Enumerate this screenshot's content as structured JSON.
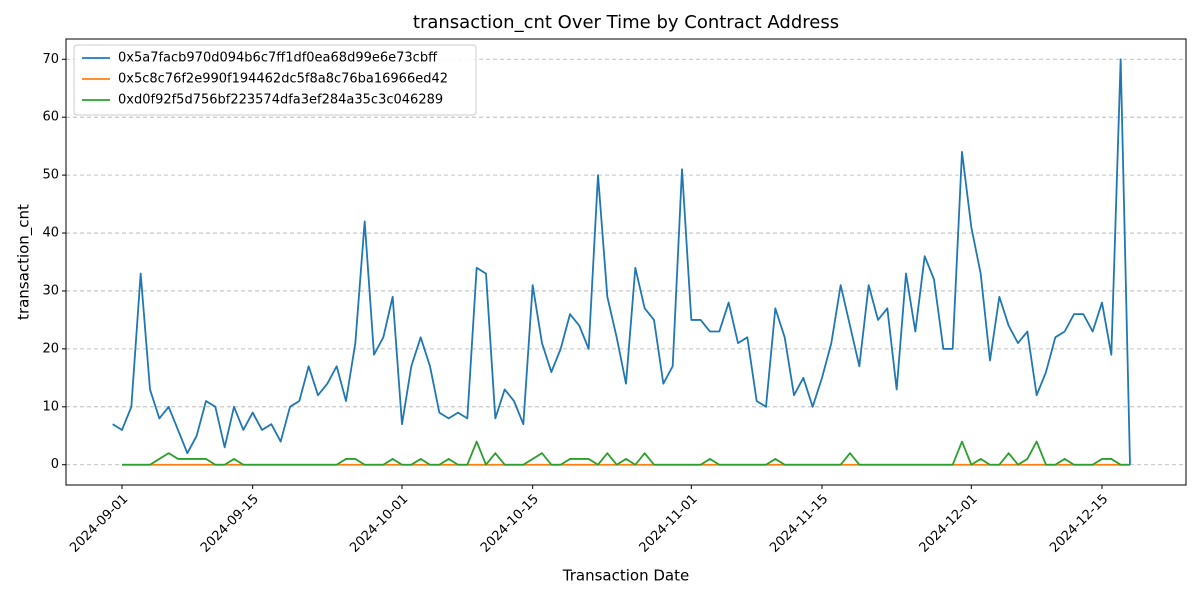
{
  "chart_data": {
    "type": "line",
    "title": "transaction_cnt Over Time by Contract Address",
    "x_label": "Transaction Date",
    "y_label": "transaction_cnt",
    "x": [
      "2024-08-31",
      "2024-09-01",
      "2024-09-02",
      "2024-09-03",
      "2024-09-04",
      "2024-09-05",
      "2024-09-06",
      "2024-09-07",
      "2024-09-08",
      "2024-09-09",
      "2024-09-10",
      "2024-09-11",
      "2024-09-12",
      "2024-09-13",
      "2024-09-14",
      "2024-09-15",
      "2024-09-16",
      "2024-09-17",
      "2024-09-18",
      "2024-09-19",
      "2024-09-20",
      "2024-09-21",
      "2024-09-22",
      "2024-09-23",
      "2024-09-24",
      "2024-09-25",
      "2024-09-26",
      "2024-09-27",
      "2024-09-28",
      "2024-09-29",
      "2024-09-30",
      "2024-10-01",
      "2024-10-02",
      "2024-10-03",
      "2024-10-04",
      "2024-10-05",
      "2024-10-06",
      "2024-10-07",
      "2024-10-08",
      "2024-10-09",
      "2024-10-10",
      "2024-10-11",
      "2024-10-12",
      "2024-10-13",
      "2024-10-14",
      "2024-10-15",
      "2024-10-16",
      "2024-10-17",
      "2024-10-18",
      "2024-10-19",
      "2024-10-20",
      "2024-10-21",
      "2024-10-22",
      "2024-10-23",
      "2024-10-24",
      "2024-10-25",
      "2024-10-26",
      "2024-10-27",
      "2024-10-28",
      "2024-10-29",
      "2024-10-30",
      "2024-10-31",
      "2024-11-01",
      "2024-11-02",
      "2024-11-03",
      "2024-11-04",
      "2024-11-05",
      "2024-11-06",
      "2024-11-07",
      "2024-11-08",
      "2024-11-09",
      "2024-11-10",
      "2024-11-11",
      "2024-11-12",
      "2024-11-13",
      "2024-11-14",
      "2024-11-15",
      "2024-11-16",
      "2024-11-17",
      "2024-11-18",
      "2024-11-19",
      "2024-11-20",
      "2024-11-21",
      "2024-11-22",
      "2024-11-23",
      "2024-11-24",
      "2024-11-25",
      "2024-11-26",
      "2024-11-27",
      "2024-11-28",
      "2024-11-29",
      "2024-11-30",
      "2024-12-01",
      "2024-12-02",
      "2024-12-03",
      "2024-12-04",
      "2024-12-05",
      "2024-12-06",
      "2024-12-07",
      "2024-12-08",
      "2024-12-09",
      "2024-12-10",
      "2024-12-11",
      "2024-12-12",
      "2024-12-13",
      "2024-12-14",
      "2024-12-15",
      "2024-12-16",
      "2024-12-17",
      "2024-12-18"
    ],
    "series": [
      {
        "name": "0x5a7facb970d094b6c7ff1df0ea68d99e6e73cbff",
        "color": "#1f77b4",
        "values": [
          7,
          6,
          10,
          33,
          13,
          8,
          10,
          6,
          2,
          5,
          11,
          10,
          3,
          10,
          6,
          9,
          6,
          7,
          4,
          10,
          11,
          17,
          12,
          14,
          17,
          11,
          21,
          42,
          19,
          22,
          29,
          7,
          17,
          22,
          17,
          9,
          8,
          9,
          8,
          34,
          33,
          8,
          13,
          11,
          7,
          31,
          21,
          16,
          20,
          26,
          24,
          20,
          50,
          29,
          22,
          14,
          34,
          27,
          25,
          14,
          17,
          51,
          25,
          25,
          23,
          23,
          28,
          21,
          22,
          11,
          10,
          27,
          22,
          12,
          15,
          10,
          15,
          21,
          31,
          24,
          17,
          31,
          25,
          27,
          13,
          33,
          23,
          36,
          32,
          20,
          20,
          54,
          41,
          33,
          18,
          29,
          24,
          21,
          23,
          12,
          16,
          22,
          23,
          26,
          26,
          23,
          28,
          19,
          70,
          0
        ]
      },
      {
        "name": "0x5c8c76f2e990f194462dc5f8a8c76ba16966ed42",
        "color": "#ff7f0e",
        "values": [
          null,
          0,
          0,
          0,
          0,
          0,
          0,
          0,
          0,
          0,
          0,
          0,
          0,
          0,
          0,
          0,
          0,
          0,
          0,
          0,
          0,
          0,
          0,
          0,
          0,
          0,
          0,
          0,
          0,
          0,
          0,
          0,
          0,
          0,
          0,
          0,
          0,
          0,
          0,
          0,
          0,
          0,
          0,
          0,
          0,
          0,
          0,
          0,
          0,
          0,
          0,
          0,
          0,
          0,
          0,
          0,
          0,
          0,
          0,
          0,
          0,
          0,
          0,
          0,
          0,
          0,
          0,
          0,
          0,
          0,
          0,
          0,
          0,
          0,
          0,
          0,
          0,
          0,
          0,
          0,
          0,
          0,
          0,
          0,
          0,
          0,
          0,
          0,
          0,
          0,
          0,
          0,
          0,
          0,
          0,
          0,
          0,
          0,
          0,
          0,
          0,
          0,
          0,
          0,
          0,
          0,
          0,
          0,
          0,
          0
        ]
      },
      {
        "name": "0xd0f92f5d756bf223574dfa3ef284a35c3c046289",
        "color": "#2ca02c",
        "values": [
          null,
          0,
          0,
          0,
          0,
          1,
          2,
          1,
          1,
          1,
          1,
          0,
          0,
          1,
          0,
          0,
          0,
          0,
          0,
          0,
          0,
          0,
          0,
          0,
          0,
          1,
          1,
          0,
          0,
          0,
          1,
          0,
          0,
          1,
          0,
          0,
          1,
          0,
          0,
          4,
          0,
          2,
          0,
          0,
          0,
          1,
          2,
          0,
          0,
          1,
          1,
          1,
          0,
          2,
          0,
          1,
          0,
          2,
          0,
          0,
          0,
          0,
          0,
          0,
          1,
          0,
          0,
          0,
          0,
          0,
          0,
          1,
          0,
          0,
          0,
          0,
          0,
          0,
          0,
          2,
          0,
          0,
          0,
          0,
          0,
          0,
          0,
          0,
          0,
          0,
          0,
          4,
          0,
          1,
          0,
          0,
          2,
          0,
          1,
          4,
          0,
          0,
          1,
          0,
          0,
          0,
          1,
          1,
          0,
          0
        ]
      }
    ],
    "xlim": [
      "2024-08-26",
      "2024-12-24"
    ],
    "xticks": [
      "2024-09-01",
      "2024-09-15",
      "2024-10-01",
      "2024-10-15",
      "2024-11-01",
      "2024-11-15",
      "2024-12-01",
      "2024-12-15"
    ],
    "ylim": [
      -3.5,
      73.5
    ],
    "yticks": [
      0,
      10,
      20,
      30,
      40,
      50,
      60,
      70
    ],
    "grid": "y",
    "legend": "upper left"
  }
}
